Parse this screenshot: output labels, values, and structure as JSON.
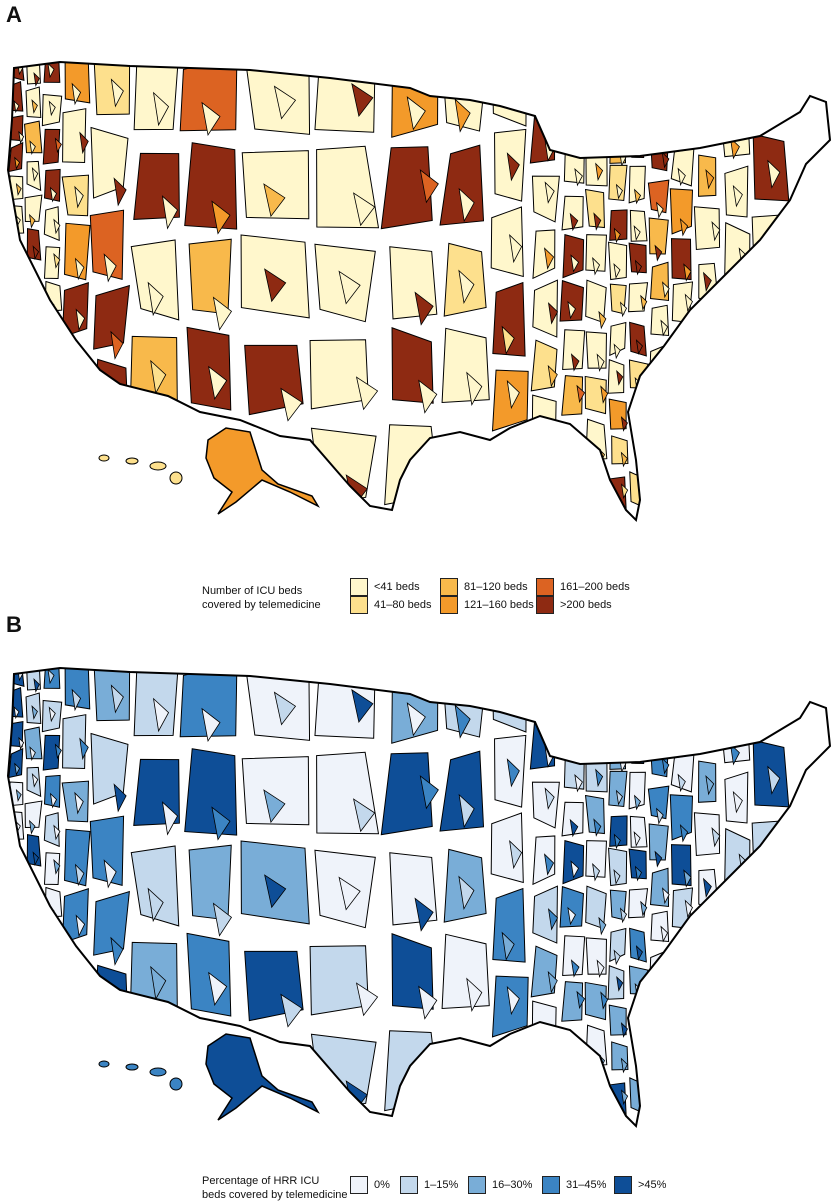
{
  "panels": [
    {
      "letter": "A",
      "legend_title_line1": "Number of ICU beds",
      "legend_title_line2": "covered by telemedicine",
      "legend": [
        {
          "label": "<41 beds",
          "color": "#FFF7CC"
        },
        {
          "label": "41–80 beds",
          "color": "#FDE08D"
        },
        {
          "label": "81–120 beds",
          "color": "#F8B94B"
        },
        {
          "label": "121–160 beds",
          "color": "#F39A2A"
        },
        {
          "label": "161–200 beds",
          "color": "#DC6322"
        },
        {
          "label": ">200 beds",
          "color": "#8E2A12"
        }
      ],
      "fills": [
        "#FFF7CC",
        "#FDE08D",
        "#F8B94B",
        "#F39A2A",
        "#DC6322",
        "#8E2A12"
      ]
    },
    {
      "letter": "B",
      "legend_title_line1": "Percentage of HRR ICU",
      "legend_title_line2": "beds covered by telemedicine",
      "legend": [
        {
          "label": "0%",
          "color": "#EFF3FA"
        },
        {
          "label": "1–15%",
          "color": "#C3D8EC"
        },
        {
          "label": "16–30%",
          "color": "#79ADD7"
        },
        {
          "label": "31–45%",
          "color": "#3B84C3"
        },
        {
          "label": ">45%",
          "color": "#0E4E97"
        }
      ],
      "fills": [
        "#EFF3FA",
        "#C3D8EC",
        "#79ADD7",
        "#3B84C3",
        "#0E4E97"
      ]
    }
  ]
}
